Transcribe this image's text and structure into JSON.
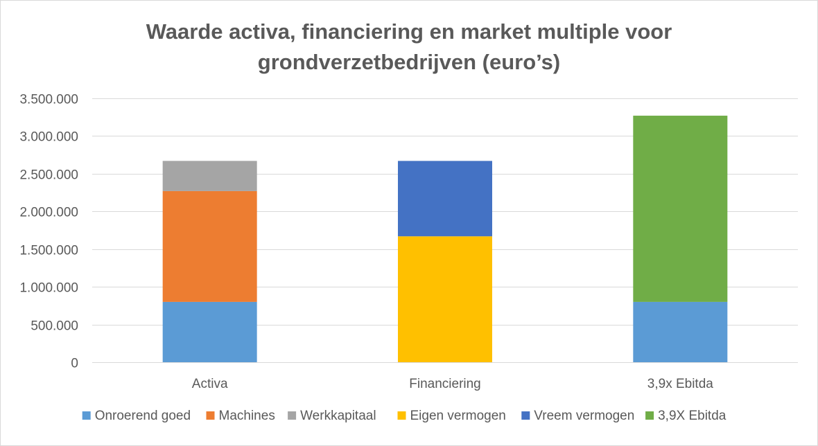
{
  "chart_data": {
    "type": "bar",
    "stacked": true,
    "title_lines": [
      "Waarde activa, financiering en market multiple voor",
      "grondverzetbedrijven (euro’s)"
    ],
    "xlabel": "",
    "ylabel": "",
    "ylim": [
      0,
      3500000
    ],
    "y_ticks": [
      0,
      500000,
      1000000,
      1500000,
      2000000,
      2500000,
      3000000,
      3500000
    ],
    "y_tick_labels": [
      "0",
      "500.000",
      "1.000.000",
      "1.500.000",
      "2.000.000",
      "2.500.000",
      "3.000.000",
      "3.500.000"
    ],
    "grid": true,
    "legend_position": "bottom",
    "categories": [
      "Activa",
      "Financiering",
      "3,9x Ebitda"
    ],
    "series": [
      {
        "name": "Onroerend goed",
        "color": "#5B9BD5",
        "values": [
          800000,
          0,
          800000
        ]
      },
      {
        "name": "Machines",
        "color": "#ED7D31",
        "values": [
          1470000,
          0,
          0
        ]
      },
      {
        "name": "Werkkapitaal",
        "color": "#A5A5A5",
        "values": [
          400000,
          0,
          0
        ]
      },
      {
        "name": "Eigen vermogen",
        "color": "#FFC000",
        "values": [
          0,
          1670000,
          0
        ]
      },
      {
        "name": "Vreem vermogen",
        "color": "#4472C4",
        "values": [
          0,
          1000000,
          0
        ]
      },
      {
        "name": "3,9X Ebitda",
        "color": "#70AD47",
        "values": [
          0,
          0,
          2470000
        ]
      }
    ]
  }
}
